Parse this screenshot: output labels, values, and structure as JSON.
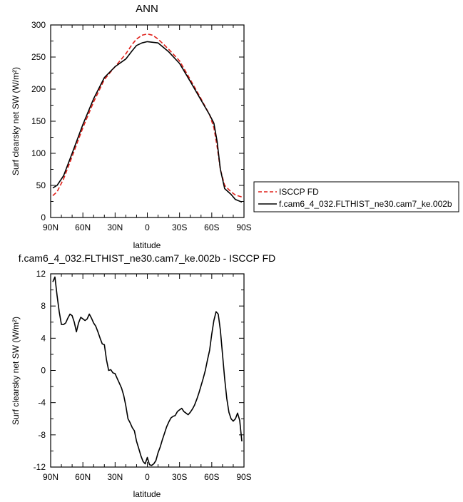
{
  "chart_data": [
    {
      "type": "line",
      "title": "ANN",
      "xlabel": "latitude",
      "ylabel": "Surf clearsky net SW (W/m²)",
      "xlim": [
        90,
        -90
      ],
      "ylim": [
        0,
        300
      ],
      "x_ticks": [
        90,
        60,
        30,
        0,
        -30,
        -60,
        -90
      ],
      "x_tick_labels": [
        "90N",
        "60N",
        "30N",
        "0",
        "30S",
        "60S",
        "90S"
      ],
      "y_ticks": [
        0,
        50,
        100,
        150,
        200,
        250,
        300
      ],
      "y_tick_labels": [
        "0",
        "50",
        "100",
        "150",
        "200",
        "250",
        "300"
      ],
      "legend_position": "right",
      "series": [
        {
          "name": "ISCCP FD",
          "color": "#e0201a",
          "dash": "dashed",
          "x": [
            88,
            84,
            78,
            70,
            60,
            50,
            40,
            30,
            20,
            14,
            10,
            5,
            0,
            -5,
            -10,
            -20,
            -30,
            -40,
            -50,
            -58,
            -62,
            -65,
            -68,
            -72,
            -78,
            -82,
            -88
          ],
          "y": [
            34,
            40,
            60,
            95,
            140,
            180,
            215,
            235,
            255,
            270,
            278,
            284,
            286,
            284,
            278,
            262,
            244,
            215,
            185,
            160,
            140,
            110,
            75,
            50,
            40,
            35,
            32
          ]
        },
        {
          "name": "f.cam6_4_032.FLTHIST_ne30.cam7_ke.002b",
          "color": "#000000",
          "dash": "solid",
          "x": [
            88,
            84,
            78,
            70,
            60,
            50,
            40,
            30,
            20,
            14,
            10,
            5,
            0,
            -5,
            -10,
            -20,
            -30,
            -40,
            -50,
            -58,
            -62,
            -65,
            -68,
            -72,
            -78,
            -82,
            -88
          ],
          "y": [
            46,
            50,
            65,
            100,
            145,
            185,
            218,
            235,
            247,
            260,
            268,
            272,
            274,
            273,
            272,
            258,
            240,
            212,
            183,
            160,
            147,
            118,
            75,
            45,
            36,
            28,
            24
          ]
        }
      ]
    },
    {
      "type": "line",
      "title": "f.cam6_4_032.FLTHIST_ne30.cam7_ke.002b - ISCCP FD",
      "xlabel": "latitude",
      "ylabel": "Surf clearsky net SW (W/m²)",
      "xlim": [
        90,
        -90
      ],
      "ylim": [
        -12,
        12
      ],
      "x_ticks": [
        90,
        60,
        30,
        0,
        -30,
        -60,
        -90
      ],
      "x_tick_labels": [
        "90N",
        "60N",
        "30N",
        "0",
        "30S",
        "60S",
        "90S"
      ],
      "y_ticks": [
        -12,
        -8,
        -4,
        0,
        4,
        8,
        12
      ],
      "y_tick_labels": [
        "-12",
        "-8",
        "-4",
        "0",
        "4",
        "8",
        "12"
      ],
      "series": [
        {
          "color": "#000000",
          "x": [
            88,
            86,
            84,
            82,
            80,
            78,
            76,
            74,
            72,
            70,
            68,
            66,
            64,
            62,
            60,
            58,
            56,
            54,
            52,
            50,
            48,
            46,
            44,
            42,
            40,
            38,
            36,
            34,
            32,
            30,
            28,
            26,
            24,
            22,
            20,
            18,
            16,
            14,
            12,
            10,
            8,
            6,
            4,
            2,
            0,
            -2,
            -4,
            -6,
            -8,
            -10,
            -12,
            -14,
            -16,
            -18,
            -20,
            -22,
            -24,
            -26,
            -28,
            -30,
            -32,
            -34,
            -36,
            -38,
            -40,
            -42,
            -44,
            -46,
            -48,
            -50,
            -52,
            -54,
            -56,
            -58,
            -60,
            -62,
            -64,
            -66,
            -68,
            -70,
            -72,
            -74,
            -76,
            -78,
            -80,
            -82,
            -84,
            -86,
            -88
          ],
          "y": [
            11.0,
            11.6,
            9.3,
            7.3,
            5.7,
            5.7,
            5.9,
            6.5,
            7.0,
            6.8,
            6.0,
            4.8,
            5.9,
            6.6,
            6.4,
            6.2,
            6.4,
            7.0,
            6.5,
            5.9,
            5.5,
            4.8,
            4.0,
            3.3,
            3.2,
            1.3,
            0.0,
            0.1,
            -0.3,
            -0.4,
            -1.0,
            -1.6,
            -2.2,
            -3.1,
            -4.4,
            -6.0,
            -6.5,
            -7.1,
            -7.5,
            -8.8,
            -9.7,
            -10.6,
            -11.3,
            -11.6,
            -10.8,
            -11.7,
            -11.8,
            -11.6,
            -11.2,
            -10.2,
            -9.5,
            -8.6,
            -7.8,
            -7.0,
            -6.4,
            -5.9,
            -5.7,
            -5.6,
            -5.1,
            -4.9,
            -4.7,
            -5.1,
            -5.3,
            -5.5,
            -5.2,
            -4.8,
            -4.3,
            -3.6,
            -2.8,
            -1.9,
            -1.0,
            0.0,
            1.3,
            2.5,
            4.5,
            6.2,
            7.3,
            7.0,
            5.0,
            2.0,
            -1.0,
            -3.5,
            -5.2,
            -6.0,
            -6.3,
            -6.0,
            -5.3,
            -6.2,
            -8.8
          ]
        }
      ]
    }
  ]
}
